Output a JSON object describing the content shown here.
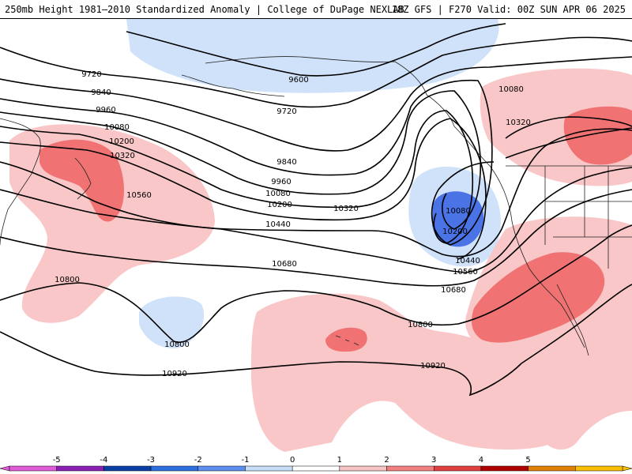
{
  "header": {
    "title_left": "250mb Height 1981–2010 Standardized Anomaly | College of DuPage NEXLAB",
    "title_right": "18Z GFS | F270 Valid: 00Z SUN APR 06 2025"
  },
  "contour_labels": [
    "9720",
    "9840",
    "9960",
    "10080",
    "10200",
    "10320",
    "10560",
    "10800",
    "9600",
    "9720",
    "9840",
    "9960",
    "10080",
    "10200",
    "10320",
    "10440",
    "10680",
    "10080",
    "10200",
    "10440",
    "10560",
    "10680",
    "10800",
    "10920",
    "10800",
    "10920",
    "10080",
    "10320"
  ],
  "colorbar": {
    "ticks": [
      "-5",
      "-4",
      "-3",
      "-2",
      "-1",
      "0",
      "1",
      "2",
      "3",
      "4",
      "5"
    ],
    "colors": [
      "#e05bd8",
      "#8a1fb3",
      "#0a3fa6",
      "#2e6fe0",
      "#5d8ff0",
      "#c8def8",
      "#ffffff",
      "#f7c4c4",
      "#f28080",
      "#e24040",
      "#b00000",
      "#e08000",
      "#f8c000"
    ]
  },
  "anomaly_colors": {
    "light_pink": "#f9c7c7",
    "pink": "#f07272",
    "light_blue": "#cfe2fa",
    "blue": "#4a73e6"
  }
}
